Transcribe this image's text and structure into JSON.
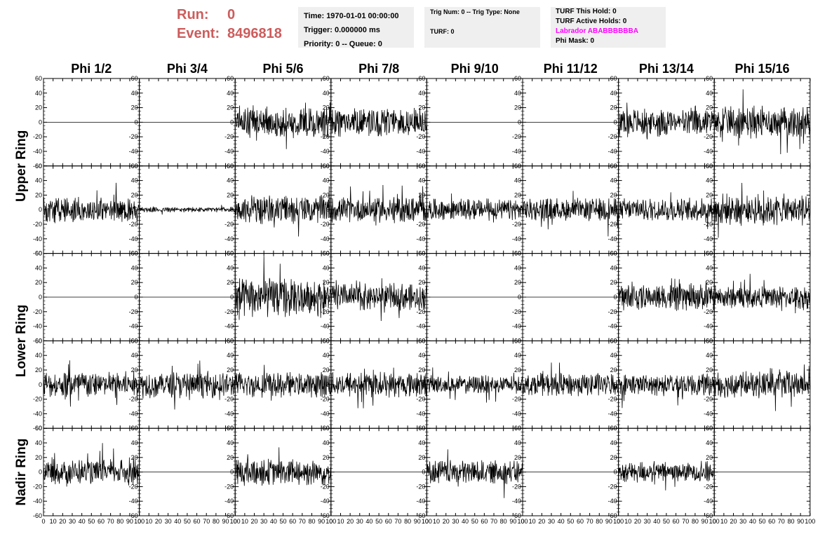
{
  "header": {
    "run_label": "Run:",
    "run_value": "0",
    "event_label": "Event:",
    "event_value": "8496818",
    "time": "Time: 1970-01-01 00:00:00",
    "trigger": "Trigger: 0.000000 ms",
    "priority": "Priority: 0 -- Queue: 0",
    "trig_num": "Trig Num: 0 -- Trig Type: None",
    "turf": "TURF: 0",
    "turf_this_hold": "TURF This Hold: 0",
    "turf_active_holds": "TURF Active Holds: 0",
    "labrador": "Labrador ABABBBBBBA",
    "phi_mask": "Phi Mask: 0"
  },
  "colors": {
    "run_text": "#cd5c5c",
    "labrador_text": "#ff00ff",
    "info_bg": "#efefef",
    "trace": "#000000"
  },
  "chart_data": {
    "type": "line",
    "columns": [
      "Phi 1/2",
      "Phi 3/4",
      "Phi 5/6",
      "Phi 7/8",
      "Phi 9/10",
      "Phi 11/12",
      "Phi 13/14",
      "Phi 15/16"
    ],
    "rings": [
      "Upper Ring",
      "Lower Ring",
      "Nadir Ring"
    ],
    "rows_per_ring": [
      2,
      2,
      1
    ],
    "xlim": [
      0,
      100
    ],
    "ylim": [
      -60,
      60
    ],
    "x_ticks": [
      "0",
      "10",
      "20",
      "30",
      "40",
      "50",
      "60",
      "70",
      "80",
      "90",
      "100"
    ],
    "y_ticks": [
      "-60",
      "-40",
      "-20",
      "0",
      "20",
      "40",
      "60"
    ],
    "grid": false,
    "panels_amplitude": [
      [
        0,
        0,
        18,
        16,
        0,
        0,
        16,
        18
      ],
      [
        14,
        3,
        16,
        14,
        12,
        13,
        13,
        18
      ],
      [
        0,
        0,
        22,
        15,
        0,
        0,
        15,
        12
      ],
      [
        15,
        15,
        14,
        14,
        10,
        13,
        12,
        15
      ],
      [
        14,
        0,
        15,
        0,
        13,
        0,
        12,
        0
      ]
    ]
  }
}
